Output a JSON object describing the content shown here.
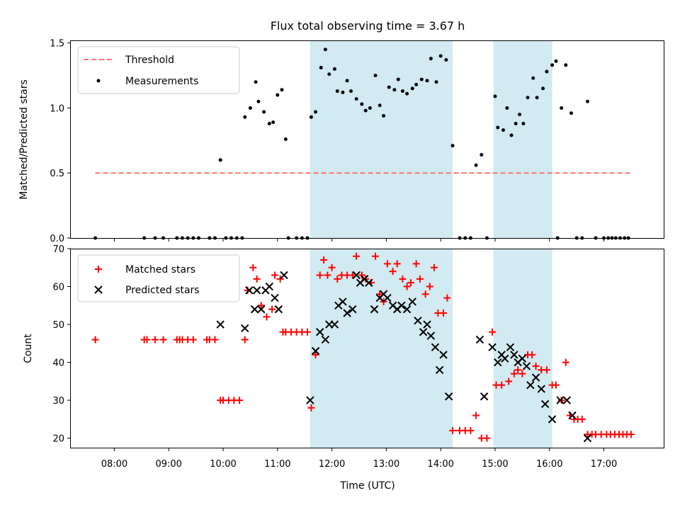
{
  "chart_data": [
    {
      "type": "scatter",
      "title": "Flux total observing time = 3.67 h",
      "xlabel": "",
      "ylabel": "Matched/Predicted stars",
      "xlim": [
        7.2,
        18.1
      ],
      "ylim": [
        0,
        1.52
      ],
      "y_ticks": [
        "0.0",
        "0.5",
        "1.0",
        "1.5"
      ],
      "shaded_spans": [
        [
          11.6,
          14.22
        ],
        [
          14.97,
          16.05
        ]
      ],
      "shade_color": "#add8e6",
      "legend": {
        "position": "top-left",
        "entries": [
          "Threshold",
          "Measurements"
        ]
      },
      "threshold": {
        "name": "Threshold",
        "value": 0.5,
        "x_range": [
          7.65,
          17.5
        ],
        "color": "#ff6f6f"
      },
      "series": [
        {
          "name": "Measurements",
          "color": "#000000",
          "points": [
            [
              7.65,
              0
            ],
            [
              8.55,
              0
            ],
            [
              8.75,
              0
            ],
            [
              8.9,
              0
            ],
            [
              9.15,
              0
            ],
            [
              9.25,
              0
            ],
            [
              9.35,
              0
            ],
            [
              9.45,
              0
            ],
            [
              9.55,
              0
            ],
            [
              9.75,
              0
            ],
            [
              9.85,
              0
            ],
            [
              9.95,
              0.6
            ],
            [
              10.05,
              0
            ],
            [
              10.15,
              0
            ],
            [
              10.25,
              0
            ],
            [
              10.35,
              0
            ],
            [
              10.4,
              0.93
            ],
            [
              10.5,
              1.0
            ],
            [
              10.6,
              1.2
            ],
            [
              10.65,
              1.05
            ],
            [
              10.75,
              0.97
            ],
            [
              10.85,
              0.88
            ],
            [
              10.92,
              0.89
            ],
            [
              11.0,
              1.1
            ],
            [
              11.08,
              1.14
            ],
            [
              11.15,
              0.76
            ],
            [
              11.2,
              0
            ],
            [
              11.35,
              0
            ],
            [
              11.45,
              0
            ],
            [
              11.55,
              0
            ],
            [
              11.62,
              0.93
            ],
            [
              11.7,
              0.97
            ],
            [
              11.8,
              1.31
            ],
            [
              11.88,
              1.45
            ],
            [
              11.95,
              1.26
            ],
            [
              12.05,
              1.3
            ],
            [
              12.1,
              1.13
            ],
            [
              12.2,
              1.12
            ],
            [
              12.28,
              1.21
            ],
            [
              12.35,
              1.13
            ],
            [
              12.45,
              1.07
            ],
            [
              12.55,
              1.03
            ],
            [
              12.62,
              0.98
            ],
            [
              12.7,
              1.0
            ],
            [
              12.8,
              1.25
            ],
            [
              12.88,
              1.02
            ],
            [
              12.95,
              0.94
            ],
            [
              13.05,
              1.16
            ],
            [
              13.15,
              1.14
            ],
            [
              13.22,
              1.22
            ],
            [
              13.3,
              1.13
            ],
            [
              13.38,
              1.11
            ],
            [
              13.48,
              1.15
            ],
            [
              13.55,
              1.18
            ],
            [
              13.65,
              1.22
            ],
            [
              13.75,
              1.21
            ],
            [
              13.82,
              1.38
            ],
            [
              13.92,
              1.2
            ],
            [
              14.0,
              1.4
            ],
            [
              14.1,
              1.37
            ],
            [
              14.22,
              0.71
            ],
            [
              14.35,
              0
            ],
            [
              14.45,
              0
            ],
            [
              14.55,
              0
            ],
            [
              14.65,
              0.56
            ],
            [
              14.75,
              0.64
            ],
            [
              14.85,
              0
            ],
            [
              15.0,
              1.09
            ],
            [
              15.05,
              0.85
            ],
            [
              15.15,
              0.83
            ],
            [
              15.22,
              1.0
            ],
            [
              15.3,
              0.79
            ],
            [
              15.38,
              0.88
            ],
            [
              15.45,
              0.95
            ],
            [
              15.52,
              0.88
            ],
            [
              15.6,
              1.08
            ],
            [
              15.7,
              1.23
            ],
            [
              15.77,
              1.08
            ],
            [
              15.88,
              1.15
            ],
            [
              15.95,
              1.28
            ],
            [
              16.05,
              1.33
            ],
            [
              16.12,
              1.36
            ],
            [
              16.15,
              0
            ],
            [
              16.22,
              1.0
            ],
            [
              16.3,
              1.33
            ],
            [
              16.4,
              0.96
            ],
            [
              16.5,
              0
            ],
            [
              16.6,
              0
            ],
            [
              16.7,
              1.05
            ],
            [
              16.85,
              0
            ],
            [
              17.0,
              0
            ],
            [
              17.08,
              0
            ],
            [
              17.15,
              0
            ],
            [
              17.22,
              0
            ],
            [
              17.3,
              0
            ],
            [
              17.38,
              0
            ],
            [
              17.45,
              0
            ]
          ]
        }
      ]
    },
    {
      "type": "scatter",
      "title": "",
      "xlabel": "Time (UTC)",
      "ylabel": "Count",
      "xlim": [
        7.2,
        18.1
      ],
      "ylim": [
        17.5,
        70
      ],
      "y_ticks": [
        "20",
        "30",
        "40",
        "50",
        "60",
        "70"
      ],
      "x_ticks": [
        8,
        9,
        10,
        11,
        12,
        13,
        14,
        15,
        16,
        17
      ],
      "x_tick_labels": [
        "08:00",
        "09:00",
        "10:00",
        "11:00",
        "12:00",
        "13:00",
        "14:00",
        "15:00",
        "16:00",
        "17:00"
      ],
      "shaded_spans": [
        [
          11.6,
          14.22
        ],
        [
          14.97,
          16.05
        ]
      ],
      "shade_color": "#add8e6",
      "legend": {
        "position": "top-left",
        "entries": [
          "Matched stars",
          "Predicted stars"
        ]
      },
      "series": [
        {
          "name": "Matched stars",
          "marker": "+",
          "color": "#ff0000",
          "points": [
            [
              7.65,
              46
            ],
            [
              8.55,
              46
            ],
            [
              8.6,
              46
            ],
            [
              8.75,
              46
            ],
            [
              8.9,
              46
            ],
            [
              9.15,
              46
            ],
            [
              9.2,
              46
            ],
            [
              9.25,
              46
            ],
            [
              9.35,
              46
            ],
            [
              9.45,
              46
            ],
            [
              9.7,
              46
            ],
            [
              9.75,
              46
            ],
            [
              9.85,
              46
            ],
            [
              9.95,
              30
            ],
            [
              10.0,
              30
            ],
            [
              10.1,
              30
            ],
            [
              10.2,
              30
            ],
            [
              10.3,
              30
            ],
            [
              10.4,
              46
            ],
            [
              10.45,
              59
            ],
            [
              10.55,
              65
            ],
            [
              10.62,
              62
            ],
            [
              10.7,
              55
            ],
            [
              10.8,
              52
            ],
            [
              10.9,
              54
            ],
            [
              10.95,
              63
            ],
            [
              11.05,
              62
            ],
            [
              11.1,
              48
            ],
            [
              11.15,
              48
            ],
            [
              11.25,
              48
            ],
            [
              11.35,
              48
            ],
            [
              11.45,
              48
            ],
            [
              11.55,
              48
            ],
            [
              11.62,
              28
            ],
            [
              11.7,
              42
            ],
            [
              11.78,
              63
            ],
            [
              11.85,
              67
            ],
            [
              11.92,
              63
            ],
            [
              12.0,
              65
            ],
            [
              12.1,
              62
            ],
            [
              12.18,
              63
            ],
            [
              12.28,
              63
            ],
            [
              12.38,
              63
            ],
            [
              12.45,
              68
            ],
            [
              12.55,
              63
            ],
            [
              12.62,
              62
            ],
            [
              12.72,
              61
            ],
            [
              12.8,
              68
            ],
            [
              12.88,
              58
            ],
            [
              12.95,
              56
            ],
            [
              13.02,
              66
            ],
            [
              13.12,
              64
            ],
            [
              13.2,
              66
            ],
            [
              13.3,
              62
            ],
            [
              13.38,
              60
            ],
            [
              13.45,
              61
            ],
            [
              13.55,
              66
            ],
            [
              13.62,
              62
            ],
            [
              13.72,
              58
            ],
            [
              13.8,
              60
            ],
            [
              13.88,
              65
            ],
            [
              13.95,
              53
            ],
            [
              14.05,
              53
            ],
            [
              14.12,
              57
            ],
            [
              14.22,
              22
            ],
            [
              14.35,
              22
            ],
            [
              14.45,
              22
            ],
            [
              14.55,
              22
            ],
            [
              14.65,
              26
            ],
            [
              14.75,
              20
            ],
            [
              14.85,
              20
            ],
            [
              14.95,
              48
            ],
            [
              15.02,
              34
            ],
            [
              15.12,
              34
            ],
            [
              15.25,
              35
            ],
            [
              15.35,
              37
            ],
            [
              15.42,
              38
            ],
            [
              15.5,
              37
            ],
            [
              15.6,
              42
            ],
            [
              15.68,
              42
            ],
            [
              15.75,
              39
            ],
            [
              15.85,
              38
            ],
            [
              15.95,
              38
            ],
            [
              16.05,
              34
            ],
            [
              16.12,
              34
            ],
            [
              16.22,
              30
            ],
            [
              16.3,
              40
            ],
            [
              16.38,
              26
            ],
            [
              16.45,
              25
            ],
            [
              16.52,
              25
            ],
            [
              16.6,
              25
            ],
            [
              16.7,
              21
            ],
            [
              16.78,
              21
            ],
            [
              16.85,
              21
            ],
            [
              16.95,
              21
            ],
            [
              17.05,
              21
            ],
            [
              17.12,
              21
            ],
            [
              17.2,
              21
            ],
            [
              17.28,
              21
            ],
            [
              17.35,
              21
            ],
            [
              17.42,
              21
            ],
            [
              17.5,
              21
            ]
          ]
        },
        {
          "name": "Predicted stars",
          "marker": "x",
          "color": "#000000",
          "points": [
            [
              9.95,
              50
            ],
            [
              10.4,
              49
            ],
            [
              10.48,
              59
            ],
            [
              10.58,
              54
            ],
            [
              10.62,
              59
            ],
            [
              10.7,
              54
            ],
            [
              10.78,
              59
            ],
            [
              10.85,
              60
            ],
            [
              10.95,
              57
            ],
            [
              11.02,
              54
            ],
            [
              11.12,
              63
            ],
            [
              11.6,
              30
            ],
            [
              11.7,
              43
            ],
            [
              11.78,
              48
            ],
            [
              11.88,
              46
            ],
            [
              11.95,
              50
            ],
            [
              12.05,
              50
            ],
            [
              12.12,
              55
            ],
            [
              12.2,
              56
            ],
            [
              12.28,
              53
            ],
            [
              12.38,
              54
            ],
            [
              12.45,
              63
            ],
            [
              12.52,
              61
            ],
            [
              12.6,
              62
            ],
            [
              12.68,
              61
            ],
            [
              12.78,
              54
            ],
            [
              12.88,
              57
            ],
            [
              12.95,
              58
            ],
            [
              13.02,
              57
            ],
            [
              13.12,
              55
            ],
            [
              13.2,
              54
            ],
            [
              13.28,
              55
            ],
            [
              13.38,
              54
            ],
            [
              13.48,
              56
            ],
            [
              13.58,
              51
            ],
            [
              13.68,
              48
            ],
            [
              13.75,
              50
            ],
            [
              13.82,
              47
            ],
            [
              13.9,
              44
            ],
            [
              13.98,
              38
            ],
            [
              14.05,
              42
            ],
            [
              14.15,
              31
            ],
            [
              14.72,
              46
            ],
            [
              14.8,
              31
            ],
            [
              14.95,
              44
            ],
            [
              15.05,
              40
            ],
            [
              15.12,
              42
            ],
            [
              15.18,
              41
            ],
            [
              15.28,
              44
            ],
            [
              15.35,
              42
            ],
            [
              15.42,
              40
            ],
            [
              15.5,
              41
            ],
            [
              15.58,
              39
            ],
            [
              15.65,
              34
            ],
            [
              15.75,
              36
            ],
            [
              15.85,
              33
            ],
            [
              15.92,
              29
            ],
            [
              16.05,
              25
            ],
            [
              16.2,
              30
            ],
            [
              16.32,
              30
            ],
            [
              16.42,
              26
            ],
            [
              16.7,
              20
            ]
          ]
        }
      ]
    }
  ]
}
